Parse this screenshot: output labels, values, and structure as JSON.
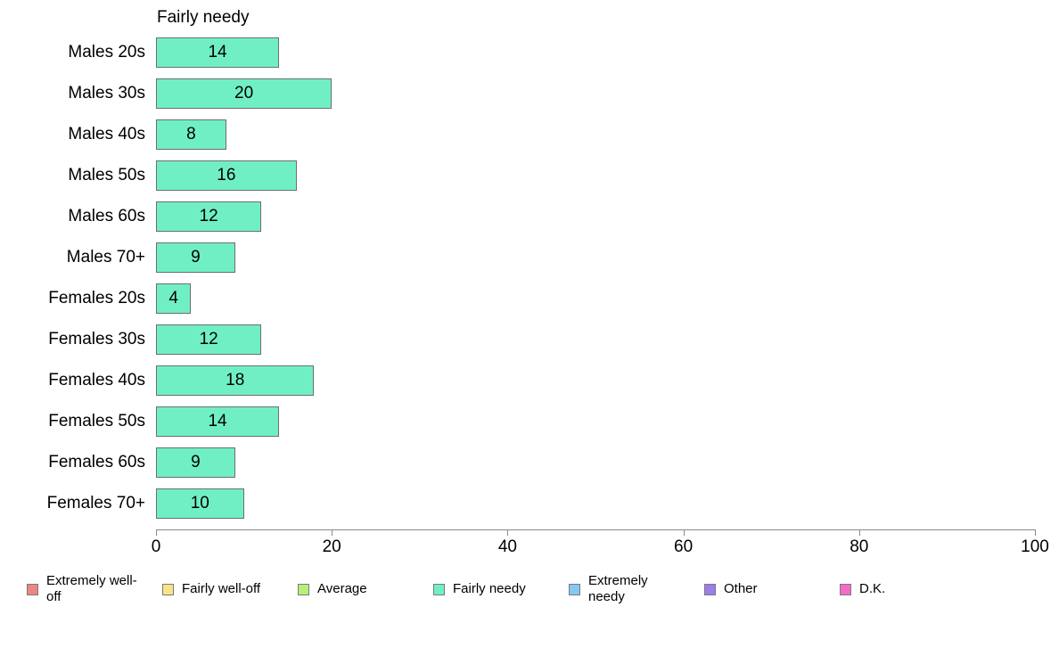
{
  "chart_data": {
    "type": "bar",
    "orientation": "horizontal",
    "title": "Fairly needy",
    "categories": [
      "Males 20s",
      "Males 30s",
      "Males 40s",
      "Males 50s",
      "Males 60s",
      "Males 70+",
      "Females 20s",
      "Females 30s",
      "Females 40s",
      "Females 50s",
      "Females 60s",
      "Females 70+"
    ],
    "values": [
      14,
      20,
      8,
      16,
      12,
      9,
      4,
      12,
      18,
      14,
      9,
      10
    ],
    "xlabel": "",
    "ylabel": "",
    "xlim": [
      0,
      100
    ],
    "x_ticks": [
      0,
      20,
      40,
      60,
      80,
      100
    ],
    "grid": false,
    "bar_color": "#70EFC5",
    "bar_border_color": "#6e6e6e",
    "value_labels_shown": true,
    "legend_position": "bottom",
    "legend": [
      {
        "label": "Extremely well-off",
        "color": "#EE8585"
      },
      {
        "label": "Fairly well-off",
        "color": "#FAE386"
      },
      {
        "label": "Average",
        "color": "#B7F079"
      },
      {
        "label": "Fairly needy",
        "color": "#70EFC5"
      },
      {
        "label": "Extremely needy",
        "color": "#85C8F2"
      },
      {
        "label": "Other",
        "color": "#9C7DEB"
      },
      {
        "label": "D.K.",
        "color": "#F26DCB"
      }
    ]
  }
}
